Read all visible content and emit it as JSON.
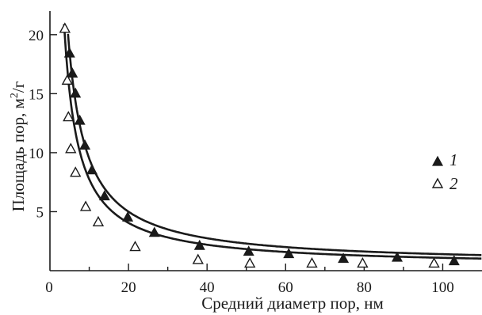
{
  "chart_data": {
    "type": "scatter",
    "title": "",
    "xlabel": "Средний диаметр пор, нм",
    "ylabel_main": "Площадь пор, м",
    "ylabel_sup": "2",
    "ylabel_tail": "/г",
    "xlim": [
      0,
      110
    ],
    "ylim": [
      0,
      22
    ],
    "x_ticks": [
      0,
      20,
      40,
      60,
      80,
      100
    ],
    "y_ticks": [
      5,
      10,
      15,
      20
    ],
    "grid": false,
    "legend_position": "right",
    "series": [
      {
        "name": "1",
        "marker": "filled-triangle",
        "color": "#1a1a1a",
        "points": [
          [
            5.0,
            18.4
          ],
          [
            5.7,
            16.7
          ],
          [
            6.5,
            15.0
          ],
          [
            7.6,
            12.7
          ],
          [
            8.9,
            10.6
          ],
          [
            10.7,
            8.5
          ],
          [
            13.9,
            6.3
          ],
          [
            19.8,
            4.5
          ],
          [
            26.6,
            3.2
          ],
          [
            38.1,
            2.1
          ],
          [
            50.6,
            1.6
          ],
          [
            60.8,
            1.4
          ],
          [
            74.7,
            1.0
          ],
          [
            88.4,
            1.1
          ],
          [
            102.9,
            0.8
          ]
        ]
      },
      {
        "name": "2",
        "marker": "open-triangle",
        "color": "#1a1a1a",
        "points": [
          [
            3.8,
            20.5
          ],
          [
            4.4,
            16.1
          ],
          [
            4.7,
            13.0
          ],
          [
            5.3,
            10.3
          ],
          [
            6.5,
            8.3
          ],
          [
            9.1,
            5.4
          ],
          [
            12.3,
            4.1
          ],
          [
            21.7,
            2.0
          ],
          [
            37.7,
            0.9
          ],
          [
            50.9,
            0.6
          ],
          [
            66.7,
            0.6
          ],
          [
            79.6,
            0.6
          ],
          [
            97.8,
            0.6
          ]
        ]
      }
    ],
    "fit_curves": [
      {
        "series": "1",
        "asymptote": 0.5,
        "coefficient": 90,
        "x_start": 4.6
      },
      {
        "series": "2",
        "asymptote": 0.35,
        "coefficient": 74,
        "x_start": 3.6
      }
    ]
  }
}
